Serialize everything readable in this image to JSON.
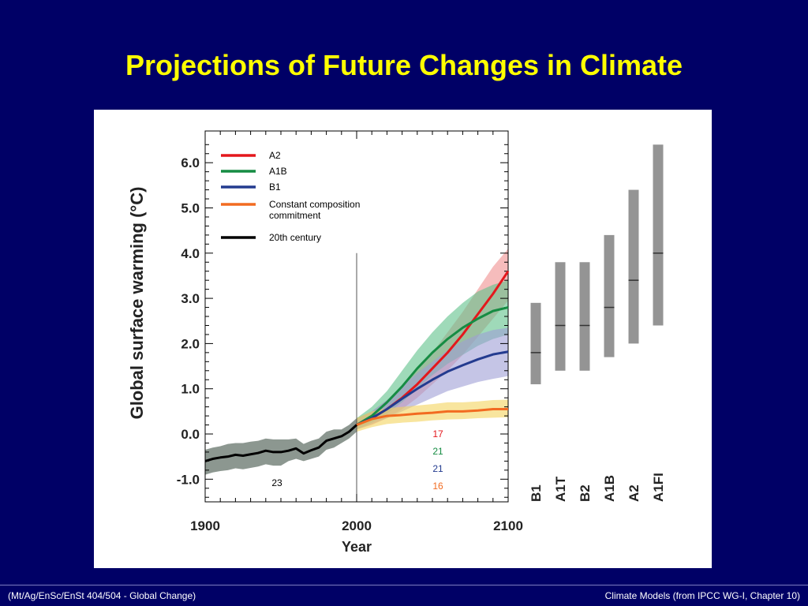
{
  "slide": {
    "title": "Projections of Future Changes in Climate"
  },
  "footer": {
    "left": "(Mt/Ag/EnSc/EnSt 404/504 - Global Change)",
    "right": "Climate Models  (from IPCC WG-I, Chapter 10)"
  },
  "chart_data": [
    {
      "type": "line",
      "title": "",
      "xlabel": "Year",
      "ylabel": "Global surface warming (°C)",
      "xlim": [
        1900,
        2100
      ],
      "ylim": [
        -1.5,
        6.5
      ],
      "x_ticks": [
        1900,
        2000,
        2100
      ],
      "y_ticks": [
        -1.0,
        0.0,
        1.0,
        2.0,
        3.0,
        4.0,
        5.0,
        6.0
      ],
      "y_tick_labels": [
        "-1.0",
        "0.0",
        "1.0",
        "2.0",
        "3.0",
        "4.0",
        "5.0",
        "6.0"
      ],
      "legend_position": "top-left",
      "divider_year": 2000,
      "series": [
        {
          "name": "20th century",
          "color": "#000000",
          "band_color": "#7f8c84",
          "x": [
            1900,
            1905,
            1910,
            1915,
            1920,
            1925,
            1930,
            1935,
            1940,
            1945,
            1950,
            1955,
            1960,
            1965,
            1970,
            1975,
            1980,
            1985,
            1990,
            1995,
            2000
          ],
          "values": [
            -0.6,
            -0.55,
            -0.52,
            -0.5,
            -0.46,
            -0.48,
            -0.45,
            -0.42,
            -0.37,
            -0.4,
            -0.4,
            -0.37,
            -0.32,
            -0.43,
            -0.36,
            -0.3,
            -0.15,
            -0.1,
            -0.05,
            0.05,
            0.2
          ],
          "lower": [
            -0.9,
            -0.85,
            -0.82,
            -0.8,
            -0.76,
            -0.78,
            -0.75,
            -0.72,
            -0.67,
            -0.7,
            -0.7,
            -0.6,
            -0.55,
            -0.6,
            -0.55,
            -0.5,
            -0.35,
            -0.3,
            -0.2,
            -0.1,
            0.05
          ],
          "upper": [
            -0.35,
            -0.3,
            -0.27,
            -0.22,
            -0.2,
            -0.2,
            -0.17,
            -0.15,
            -0.1,
            -0.12,
            -0.12,
            -0.12,
            -0.1,
            -0.22,
            -0.15,
            -0.1,
            0.05,
            0.1,
            0.1,
            0.2,
            0.35
          ]
        },
        {
          "name": "A2",
          "color": "#e4171c",
          "band_color": "#f09090",
          "x": [
            2000,
            2010,
            2020,
            2030,
            2040,
            2050,
            2060,
            2070,
            2080,
            2090,
            2100
          ],
          "values": [
            0.2,
            0.35,
            0.55,
            0.8,
            1.1,
            1.45,
            1.8,
            2.2,
            2.65,
            3.1,
            3.6
          ],
          "lower": [
            0.1,
            0.2,
            0.35,
            0.55,
            0.8,
            1.1,
            1.4,
            1.75,
            2.15,
            2.55,
            2.95
          ],
          "upper": [
            0.35,
            0.5,
            0.75,
            1.05,
            1.4,
            1.8,
            2.25,
            2.7,
            3.2,
            3.7,
            4.1
          ]
        },
        {
          "name": "A1B",
          "color": "#168c43",
          "band_color": "#5fc28a",
          "x": [
            2000,
            2010,
            2020,
            2030,
            2040,
            2050,
            2060,
            2070,
            2080,
            2090,
            2100
          ],
          "values": [
            0.2,
            0.4,
            0.7,
            1.05,
            1.45,
            1.8,
            2.1,
            2.35,
            2.55,
            2.72,
            2.8
          ],
          "lower": [
            0.1,
            0.25,
            0.45,
            0.7,
            1.0,
            1.3,
            1.55,
            1.75,
            1.95,
            2.1,
            2.2
          ],
          "upper": [
            0.35,
            0.6,
            0.95,
            1.4,
            1.85,
            2.25,
            2.6,
            2.9,
            3.15,
            3.3,
            3.4
          ]
        },
        {
          "name": "B1",
          "color": "#233b8f",
          "band_color": "#9e9ed6",
          "x": [
            2000,
            2010,
            2020,
            2030,
            2040,
            2050,
            2060,
            2070,
            2080,
            2090,
            2100
          ],
          "values": [
            0.2,
            0.35,
            0.55,
            0.78,
            1.0,
            1.2,
            1.38,
            1.52,
            1.65,
            1.76,
            1.82
          ],
          "lower": [
            0.1,
            0.22,
            0.35,
            0.5,
            0.65,
            0.8,
            0.95,
            1.05,
            1.15,
            1.22,
            1.28
          ],
          "upper": [
            0.32,
            0.5,
            0.75,
            1.05,
            1.35,
            1.6,
            1.85,
            2.05,
            2.2,
            2.3,
            2.35
          ]
        },
        {
          "name": "Constant composition commitment",
          "color": "#f26b21",
          "band_color": "#f4d35e",
          "x": [
            2000,
            2010,
            2020,
            2030,
            2040,
            2050,
            2060,
            2070,
            2080,
            2090,
            2100
          ],
          "values": [
            0.2,
            0.33,
            0.4,
            0.42,
            0.45,
            0.47,
            0.5,
            0.5,
            0.52,
            0.55,
            0.55
          ],
          "lower": [
            0.05,
            0.15,
            0.22,
            0.25,
            0.27,
            0.3,
            0.32,
            0.33,
            0.35,
            0.36,
            0.37
          ],
          "upper": [
            0.35,
            0.5,
            0.57,
            0.6,
            0.63,
            0.66,
            0.7,
            0.7,
            0.72,
            0.75,
            0.76
          ]
        }
      ],
      "annotations": [
        {
          "text": "23",
          "color": "#000000"
        },
        {
          "text": "17",
          "color": "#e4171c"
        },
        {
          "text": "21",
          "color": "#168c43"
        },
        {
          "text": "21",
          "color": "#233b8f"
        },
        {
          "text": "16",
          "color": "#f26b21"
        }
      ]
    },
    {
      "type": "bar",
      "title": "",
      "categories": [
        "B1",
        "A1T",
        "B2",
        "A1B",
        "A2",
        "A1FI"
      ],
      "color": "#949494",
      "ranges": [
        {
          "low": 1.1,
          "high": 2.9,
          "best": 1.8
        },
        {
          "low": 1.4,
          "high": 3.8,
          "best": 2.4
        },
        {
          "low": 1.4,
          "high": 3.8,
          "best": 2.4
        },
        {
          "low": 1.7,
          "high": 4.4,
          "best": 2.8
        },
        {
          "low": 2.0,
          "high": 5.4,
          "best": 3.4
        },
        {
          "low": 2.4,
          "high": 6.4,
          "best": 4.0
        }
      ]
    }
  ]
}
